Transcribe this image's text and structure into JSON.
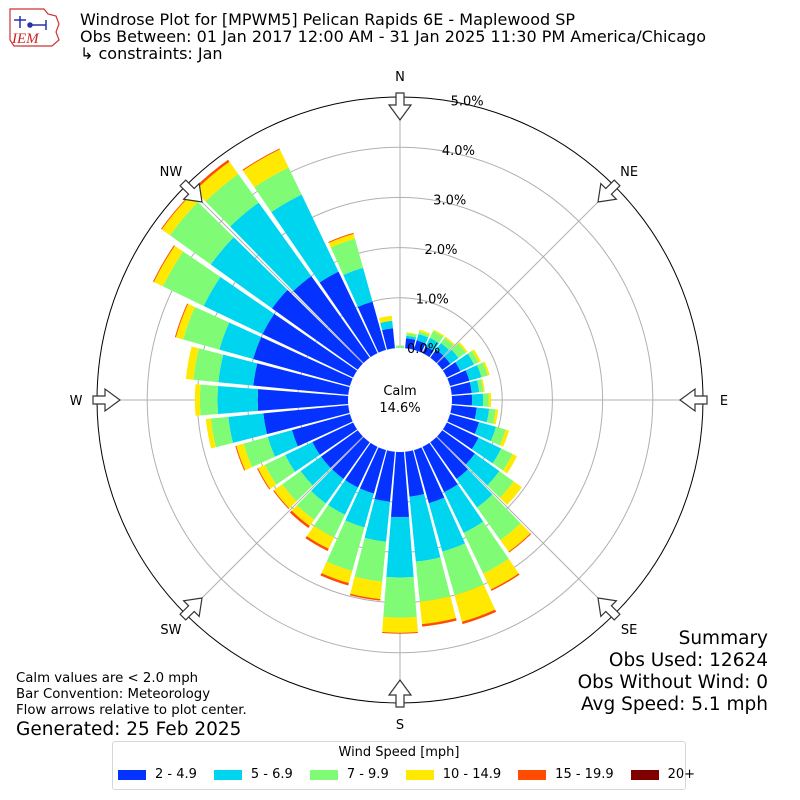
{
  "header": {
    "logo_text": "IEM",
    "title_line1": "Windrose Plot for [MPWM5] Pelican Rapids 6E - Maplewood SP",
    "title_line2": "Obs Between: 01 Jan 2017 12:00 AM - 31 Jan 2025 11:30 PM America/Chicago",
    "title_line3": "↳ constraints: Jan"
  },
  "summary": {
    "heading": "Summary",
    "obs_used": "Obs Used: 12624",
    "obs_without_wind": "Obs Without Wind: 0",
    "avg_speed": "Avg Speed: 5.1 mph"
  },
  "notes": {
    "calm_note": "Calm values are < 2.0 mph",
    "bar_convention": "Bar Convention: Meteorology",
    "flow_note": "Flow arrows relative to plot center.",
    "generated": "Generated: 25 Feb 2025"
  },
  "colors": {
    "bins": [
      "#0433ff",
      "#00d5ef",
      "#7ffb76",
      "#ffe900",
      "#ff4c00",
      "#800000"
    ],
    "grid": "#b0b0b0"
  },
  "chart_data": {
    "type": "windrose",
    "center_label": "Calm",
    "calm_percent": "14.6%",
    "radial_ticks": [
      "0.0%",
      "1.0%",
      "2.0%",
      "3.0%",
      "4.0%",
      "5.0%"
    ],
    "radial_tick_values": [
      0,
      1,
      2,
      3,
      4,
      5
    ],
    "radial_max": 5.0,
    "compass_labels": [
      "N",
      "NE",
      "E",
      "SE",
      "S",
      "SW",
      "W",
      "NW"
    ],
    "legend_title": "Wind Speed [mph]",
    "speed_bins": [
      "2 - 4.9",
      "5 - 6.9",
      "7 - 9.9",
      "10 - 14.9",
      "15 - 19.9",
      "20+"
    ],
    "directions_deg": [
      0,
      10,
      20,
      30,
      40,
      50,
      60,
      70,
      80,
      90,
      100,
      110,
      120,
      130,
      140,
      150,
      160,
      170,
      180,
      190,
      200,
      210,
      220,
      230,
      240,
      250,
      260,
      270,
      280,
      290,
      300,
      310,
      320,
      330,
      340,
      350
    ],
    "cumulative_percent": [
      [
        0.0,
        0.0,
        0.05,
        0.05,
        0.05,
        0.05
      ],
      [
        0.2,
        0.25,
        0.3,
        0.32,
        0.32,
        0.32
      ],
      [
        0.2,
        0.33,
        0.38,
        0.42,
        0.42,
        0.42
      ],
      [
        0.15,
        0.34,
        0.49,
        0.52,
        0.52,
        0.52
      ],
      [
        0.2,
        0.36,
        0.49,
        0.52,
        0.52,
        0.52
      ],
      [
        0.2,
        0.4,
        0.58,
        0.62,
        0.62,
        0.62
      ],
      [
        0.3,
        0.6,
        0.7,
        0.75,
        0.75,
        0.75
      ],
      [
        0.4,
        0.65,
        0.78,
        0.82,
        0.82,
        0.82
      ],
      [
        0.4,
        0.55,
        0.63,
        0.66,
        0.66,
        0.66
      ],
      [
        0.4,
        0.62,
        0.73,
        0.78,
        0.78,
        0.78
      ],
      [
        0.5,
        0.75,
        0.88,
        0.93,
        0.93,
        0.93
      ],
      [
        0.6,
        0.95,
        1.15,
        1.22,
        1.22,
        1.22
      ],
      [
        0.7,
        1.2,
        1.45,
        1.55,
        1.55,
        1.55
      ],
      [
        0.8,
        1.4,
        1.75,
        1.95,
        1.95,
        1.95
      ],
      [
        0.9,
        1.6,
        2.4,
        2.68,
        2.7,
        2.7
      ],
      [
        1.0,
        1.9,
        2.8,
        3.15,
        3.18,
        3.18
      ],
      [
        1.1,
        2.1,
        3.0,
        3.55,
        3.6,
        3.6
      ],
      [
        0.9,
        2.2,
        3.0,
        3.45,
        3.5,
        3.5
      ],
      [
        1.3,
        2.5,
        3.3,
        3.6,
        3.62,
        3.62
      ],
      [
        1.0,
        1.8,
        2.6,
        2.95,
        2.98,
        2.98
      ],
      [
        0.9,
        1.6,
        2.5,
        2.75,
        2.8,
        2.8
      ],
      [
        0.9,
        1.5,
        2.0,
        2.25,
        2.3,
        2.3
      ],
      [
        0.9,
        1.5,
        1.9,
        2.05,
        2.1,
        2.1
      ],
      [
        0.9,
        1.4,
        1.85,
        2.05,
        2.07,
        2.07
      ],
      [
        0.9,
        1.5,
        1.95,
        2.1,
        2.12,
        2.12
      ],
      [
        1.2,
        1.7,
        2.2,
        2.35,
        2.37,
        2.37
      ],
      [
        1.7,
        2.4,
        2.75,
        2.85,
        2.85,
        2.85
      ],
      [
        1.8,
        2.6,
        2.95,
        3.05,
        3.05,
        3.05
      ],
      [
        1.9,
        2.6,
        3.1,
        3.25,
        3.25,
        3.25
      ],
      [
        2.0,
        2.7,
        3.45,
        3.6,
        3.62,
        3.62
      ],
      [
        2.0,
        3.3,
        4.2,
        4.4,
        4.42,
        4.42
      ],
      [
        2.1,
        3.6,
        4.6,
        4.8,
        4.82,
        4.82
      ],
      [
        2.0,
        3.8,
        4.5,
        4.8,
        4.85,
        4.85
      ],
      [
        1.8,
        3.5,
        4.1,
        4.5,
        4.52,
        4.52
      ],
      [
        1.0,
        1.7,
        2.3,
        2.4,
        2.42,
        2.42
      ],
      [
        0.4,
        0.55,
        0.55,
        0.65,
        0.65,
        0.65
      ]
    ]
  }
}
